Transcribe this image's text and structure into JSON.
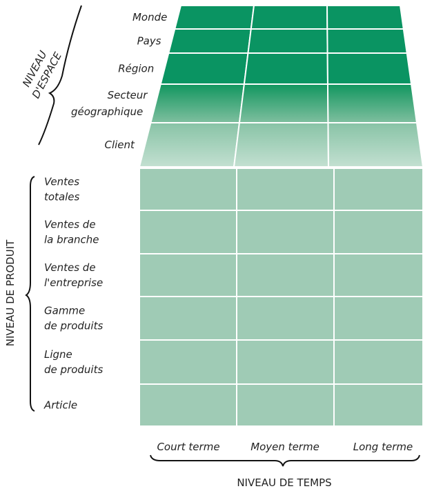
{
  "space_axis": {
    "label": [
      "NIVEAU",
      "D'ESPACE"
    ],
    "levels": [
      [
        "Monde"
      ],
      [
        "Pays"
      ],
      [
        "Région"
      ],
      [
        "Secteur",
        "géographique"
      ],
      [
        "Client"
      ]
    ]
  },
  "product_axis": {
    "label": "NIVEAU DE PRODUIT",
    "levels": [
      [
        "Ventes",
        "totales"
      ],
      [
        "Ventes de",
        "la branche"
      ],
      [
        "Ventes de",
        "l'entreprise"
      ],
      [
        "Gamme",
        "de produits"
      ],
      [
        "Ligne",
        "de produits"
      ],
      [
        "Article"
      ]
    ]
  },
  "time_axis": {
    "label": "NIVEAU DE TEMPS",
    "levels": [
      "Court terme",
      "Moyen terme",
      "Long terme"
    ]
  }
}
